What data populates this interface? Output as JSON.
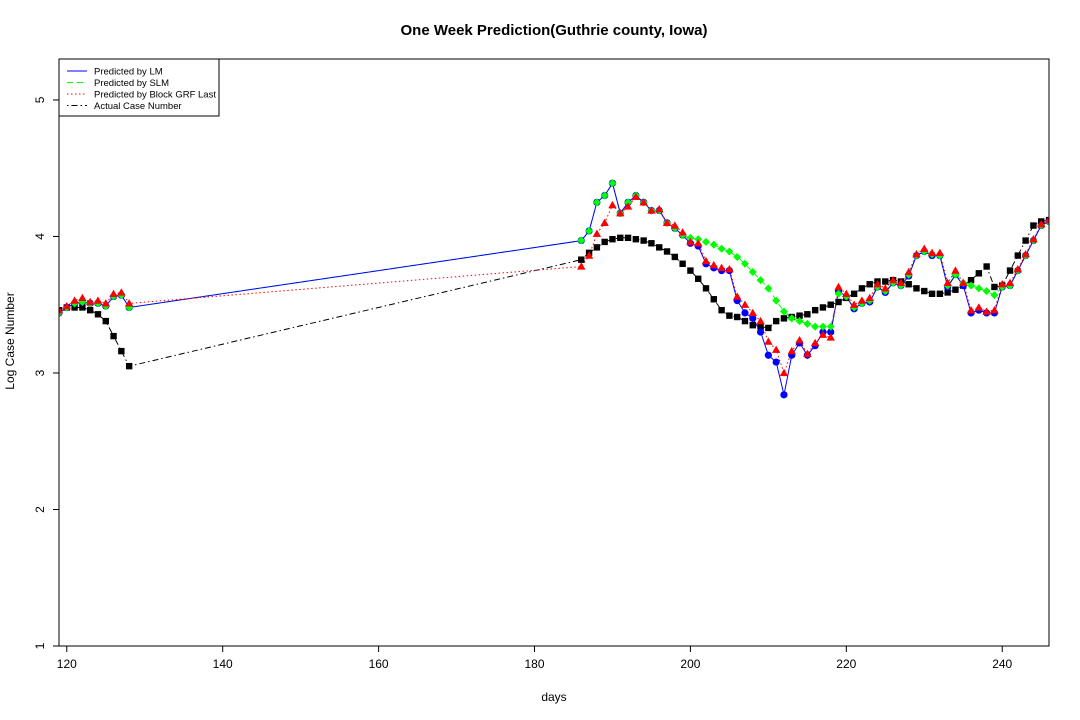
{
  "chart_data": {
    "type": "line",
    "title": "One Week Prediction(Guthrie county, Iowa)",
    "xlabel": "days",
    "ylabel": "Log Case Number",
    "xlim": [
      119,
      246
    ],
    "ylim": [
      1,
      5.3
    ],
    "xticks": [
      120,
      140,
      160,
      180,
      200,
      220,
      240
    ],
    "yticks": [
      1,
      2,
      3,
      4,
      5
    ],
    "grid": false,
    "legend_position": "top-left",
    "legend": [
      "Predicted by LM",
      "Predicted by SLM",
      "Predicted by Block GRF Last",
      "Actual Case Number"
    ],
    "series": [
      {
        "name": "Predicted by LM",
        "color": "#0000ff",
        "line_style": "solid",
        "marker": "circle",
        "marker_color": "#0000ff",
        "x": [
          119,
          120,
          121,
          122,
          123,
          124,
          125,
          126,
          127,
          128,
          186,
          187,
          188,
          189,
          190,
          191,
          192,
          193,
          194,
          195,
          196,
          197,
          198,
          199,
          200,
          201,
          202,
          203,
          204,
          205,
          206,
          207,
          208,
          209,
          210,
          211,
          212,
          213,
          214,
          215,
          216,
          217,
          218,
          219,
          220,
          221,
          222,
          223,
          224,
          225,
          226,
          227,
          228,
          229,
          230,
          231,
          232,
          233,
          234,
          235,
          236,
          237,
          238,
          239,
          240,
          241,
          242,
          243,
          244,
          245,
          246
        ],
        "y": [
          3.44,
          3.48,
          3.51,
          3.52,
          3.51,
          3.51,
          3.49,
          3.56,
          3.57,
          3.48,
          3.97,
          4.04,
          4.25,
          4.3,
          4.39,
          4.17,
          4.25,
          4.3,
          4.25,
          4.19,
          4.19,
          4.1,
          4.06,
          4.01,
          3.95,
          3.93,
          3.8,
          3.77,
          3.75,
          3.75,
          3.53,
          3.44,
          3.4,
          3.3,
          3.13,
          3.08,
          2.84,
          3.13,
          3.22,
          3.13,
          3.2,
          3.3,
          3.3,
          3.6,
          3.56,
          3.47,
          3.51,
          3.52,
          3.63,
          3.59,
          3.66,
          3.64,
          3.71,
          3.86,
          3.89,
          3.86,
          3.86,
          3.63,
          3.72,
          3.64,
          3.44,
          3.46,
          3.44,
          3.44,
          3.63,
          3.64,
          3.75,
          3.86,
          3.97,
          4.08,
          4.11
        ]
      },
      {
        "name": "Predicted by SLM",
        "color": "#00ff00",
        "line_style": "dashed",
        "marker": "diamond",
        "marker_color": "#00ff00",
        "x": [
          119,
          120,
          121,
          122,
          123,
          124,
          125,
          126,
          127,
          128,
          186,
          187,
          188,
          189,
          190,
          191,
          192,
          193,
          194,
          195,
          196,
          197,
          198,
          199,
          200,
          201,
          202,
          203,
          204,
          205,
          206,
          207,
          208,
          209,
          210,
          211,
          212,
          213,
          214,
          215,
          216,
          217,
          218,
          219,
          220,
          221,
          222,
          223,
          224,
          225,
          226,
          227,
          228,
          229,
          230,
          231,
          232,
          233,
          234,
          235,
          236,
          237,
          238,
          239,
          240,
          241,
          242,
          243,
          244,
          245,
          246
        ],
        "y": [
          3.44,
          3.48,
          3.51,
          3.52,
          3.51,
          3.51,
          3.49,
          3.56,
          3.57,
          3.48,
          3.97,
          4.04,
          4.25,
          4.3,
          4.39,
          4.17,
          4.25,
          4.3,
          4.25,
          4.19,
          4.19,
          4.1,
          4.06,
          4.01,
          3.99,
          3.98,
          3.96,
          3.94,
          3.91,
          3.89,
          3.85,
          3.8,
          3.74,
          3.68,
          3.62,
          3.53,
          3.45,
          3.4,
          3.38,
          3.36,
          3.34,
          3.34,
          3.34,
          3.58,
          3.56,
          3.48,
          3.51,
          3.53,
          3.63,
          3.6,
          3.66,
          3.64,
          3.72,
          3.86,
          3.89,
          3.87,
          3.86,
          3.64,
          3.72,
          3.66,
          3.64,
          3.62,
          3.6,
          3.57,
          3.63,
          3.64,
          3.75,
          3.86,
          3.97,
          4.08,
          4.11
        ]
      },
      {
        "name": "Predicted by Block GRF Last",
        "color": "#ff0000",
        "line_style": "dotted",
        "marker": "triangle",
        "marker_color": "#ff0000",
        "x": [
          119,
          120,
          121,
          122,
          123,
          124,
          125,
          126,
          127,
          128,
          186,
          187,
          188,
          189,
          190,
          191,
          192,
          193,
          194,
          195,
          196,
          197,
          198,
          199,
          200,
          201,
          202,
          203,
          204,
          205,
          206,
          207,
          208,
          209,
          210,
          211,
          212,
          213,
          214,
          215,
          216,
          217,
          218,
          219,
          220,
          221,
          222,
          223,
          224,
          225,
          226,
          227,
          228,
          229,
          230,
          231,
          232,
          233,
          234,
          235,
          236,
          237,
          238,
          239,
          240,
          241,
          242,
          243,
          244,
          245,
          246
        ],
        "y": [
          3.46,
          3.49,
          3.53,
          3.55,
          3.52,
          3.53,
          3.51,
          3.58,
          3.59,
          3.51,
          3.78,
          3.86,
          4.02,
          4.1,
          4.23,
          4.17,
          4.22,
          4.29,
          4.25,
          4.19,
          4.2,
          4.1,
          4.08,
          4.03,
          3.96,
          3.95,
          3.82,
          3.79,
          3.77,
          3.76,
          3.56,
          3.5,
          3.44,
          3.38,
          3.23,
          3.17,
          3.0,
          3.16,
          3.24,
          3.14,
          3.22,
          3.28,
          3.26,
          3.63,
          3.58,
          3.5,
          3.53,
          3.55,
          3.65,
          3.62,
          3.68,
          3.66,
          3.74,
          3.87,
          3.91,
          3.88,
          3.88,
          3.66,
          3.75,
          3.66,
          3.46,
          3.48,
          3.45,
          3.46,
          3.65,
          3.66,
          3.76,
          3.87,
          3.98,
          4.09,
          4.12
        ]
      },
      {
        "name": "Actual Case Number",
        "color": "#000000",
        "line_style": "dotdash",
        "marker": "square",
        "marker_color": "#000000",
        "x": [
          119,
          120,
          121,
          122,
          123,
          124,
          125,
          126,
          127,
          128,
          186,
          187,
          188,
          189,
          190,
          191,
          192,
          193,
          194,
          195,
          196,
          197,
          198,
          199,
          200,
          201,
          202,
          203,
          204,
          205,
          206,
          207,
          208,
          209,
          210,
          211,
          212,
          213,
          214,
          215,
          216,
          217,
          218,
          219,
          220,
          221,
          222,
          223,
          224,
          225,
          226,
          227,
          228,
          229,
          230,
          231,
          232,
          233,
          234,
          235,
          236,
          237,
          238,
          239,
          240,
          241,
          242,
          243,
          244,
          245,
          246
        ],
        "y": [
          3.46,
          3.48,
          3.48,
          3.48,
          3.46,
          3.43,
          3.38,
          3.27,
          3.16,
          3.05,
          3.83,
          3.88,
          3.92,
          3.96,
          3.98,
          3.99,
          3.99,
          3.98,
          3.97,
          3.95,
          3.92,
          3.89,
          3.85,
          3.8,
          3.75,
          3.69,
          3.62,
          3.54,
          3.46,
          3.42,
          3.41,
          3.38,
          3.35,
          3.34,
          3.33,
          3.38,
          3.4,
          3.41,
          3.42,
          3.43,
          3.46,
          3.48,
          3.5,
          3.52,
          3.55,
          3.58,
          3.62,
          3.65,
          3.67,
          3.67,
          3.68,
          3.67,
          3.65,
          3.62,
          3.6,
          3.58,
          3.58,
          3.59,
          3.61,
          3.64,
          3.68,
          3.73,
          3.78,
          3.63,
          3.64,
          3.75,
          3.86,
          3.97,
          4.08,
          4.11,
          4.12
        ]
      }
    ]
  }
}
